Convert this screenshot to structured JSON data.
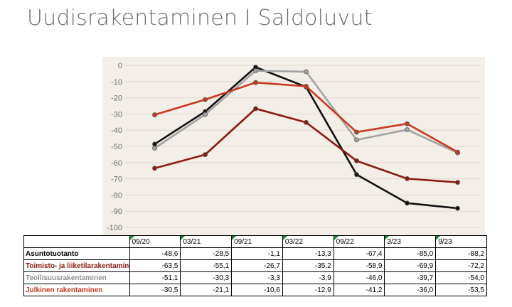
{
  "title": "Uudisrakentaminen I Saldoluvut",
  "chart_data": {
    "type": "line",
    "categories": [
      "09/20",
      "03/21",
      "09/21",
      "03/22",
      "09/22",
      "3/23",
      "9/23"
    ],
    "ylim": [
      -100,
      0
    ],
    "yticks": [
      0,
      -10,
      -20,
      -30,
      -40,
      -50,
      -60,
      -70,
      -80,
      -90,
      -100
    ],
    "grid": true,
    "legend": "table below chart",
    "series": [
      {
        "name": "Asuntotuotanto",
        "color": "#111111",
        "values": [
          -48.6,
          -28.5,
          -1.1,
          -13.3,
          -67.4,
          -85.0,
          -88.2
        ]
      },
      {
        "name": "Toimisto- ja liiketilarakentaminen",
        "color": "#8b1a0e",
        "values": [
          -63.5,
          -55.1,
          -26.7,
          -35.2,
          -58.9,
          -69.9,
          -72.2
        ]
      },
      {
        "name": "Teollisuusrakentaminen",
        "color": "#a3a3a3",
        "values": [
          -51.1,
          -30.3,
          -3.3,
          -3.9,
          -46.0,
          -39.7,
          -54.0
        ]
      },
      {
        "name": "Julkinen rakentaminen",
        "color": "#c8391e",
        "values": [
          -30.5,
          -21.1,
          -10.6,
          -12.9,
          -41.2,
          -36.0,
          -53.5
        ]
      }
    ]
  },
  "table": {
    "header": [
      "09/20",
      "03/21",
      "09/21",
      "03/22",
      "09/22",
      "3/23",
      "9/23"
    ],
    "rows": [
      {
        "label": "Asuntotuotanto",
        "color": "#000000",
        "values": [
          "-48,6",
          "-28,5",
          "-1,1",
          "-13,3",
          "-67,4",
          "-85,0",
          "-88,2"
        ]
      },
      {
        "label": "Toimisto- ja liiketilarakentaminen",
        "color": "#8b1a0e",
        "values": [
          "-63,5",
          "-55,1",
          "-26,7",
          "-35,2",
          "-58,9",
          "-69,9",
          "-72,2"
        ]
      },
      {
        "label": "Teollisuusrakentaminen",
        "color": "#8f8f8f",
        "values": [
          "-51,1",
          "-30,3",
          "-3,3",
          "-3,9",
          "-46,0",
          "-39,7",
          "-54,0"
        ]
      },
      {
        "label": "Julkinen rakentaminen",
        "color": "#c8391e",
        "values": [
          "-30,5",
          "-21,1",
          "-10,6",
          "-12,9",
          "-41,2",
          "-36,0",
          "-53,5"
        ]
      }
    ]
  }
}
